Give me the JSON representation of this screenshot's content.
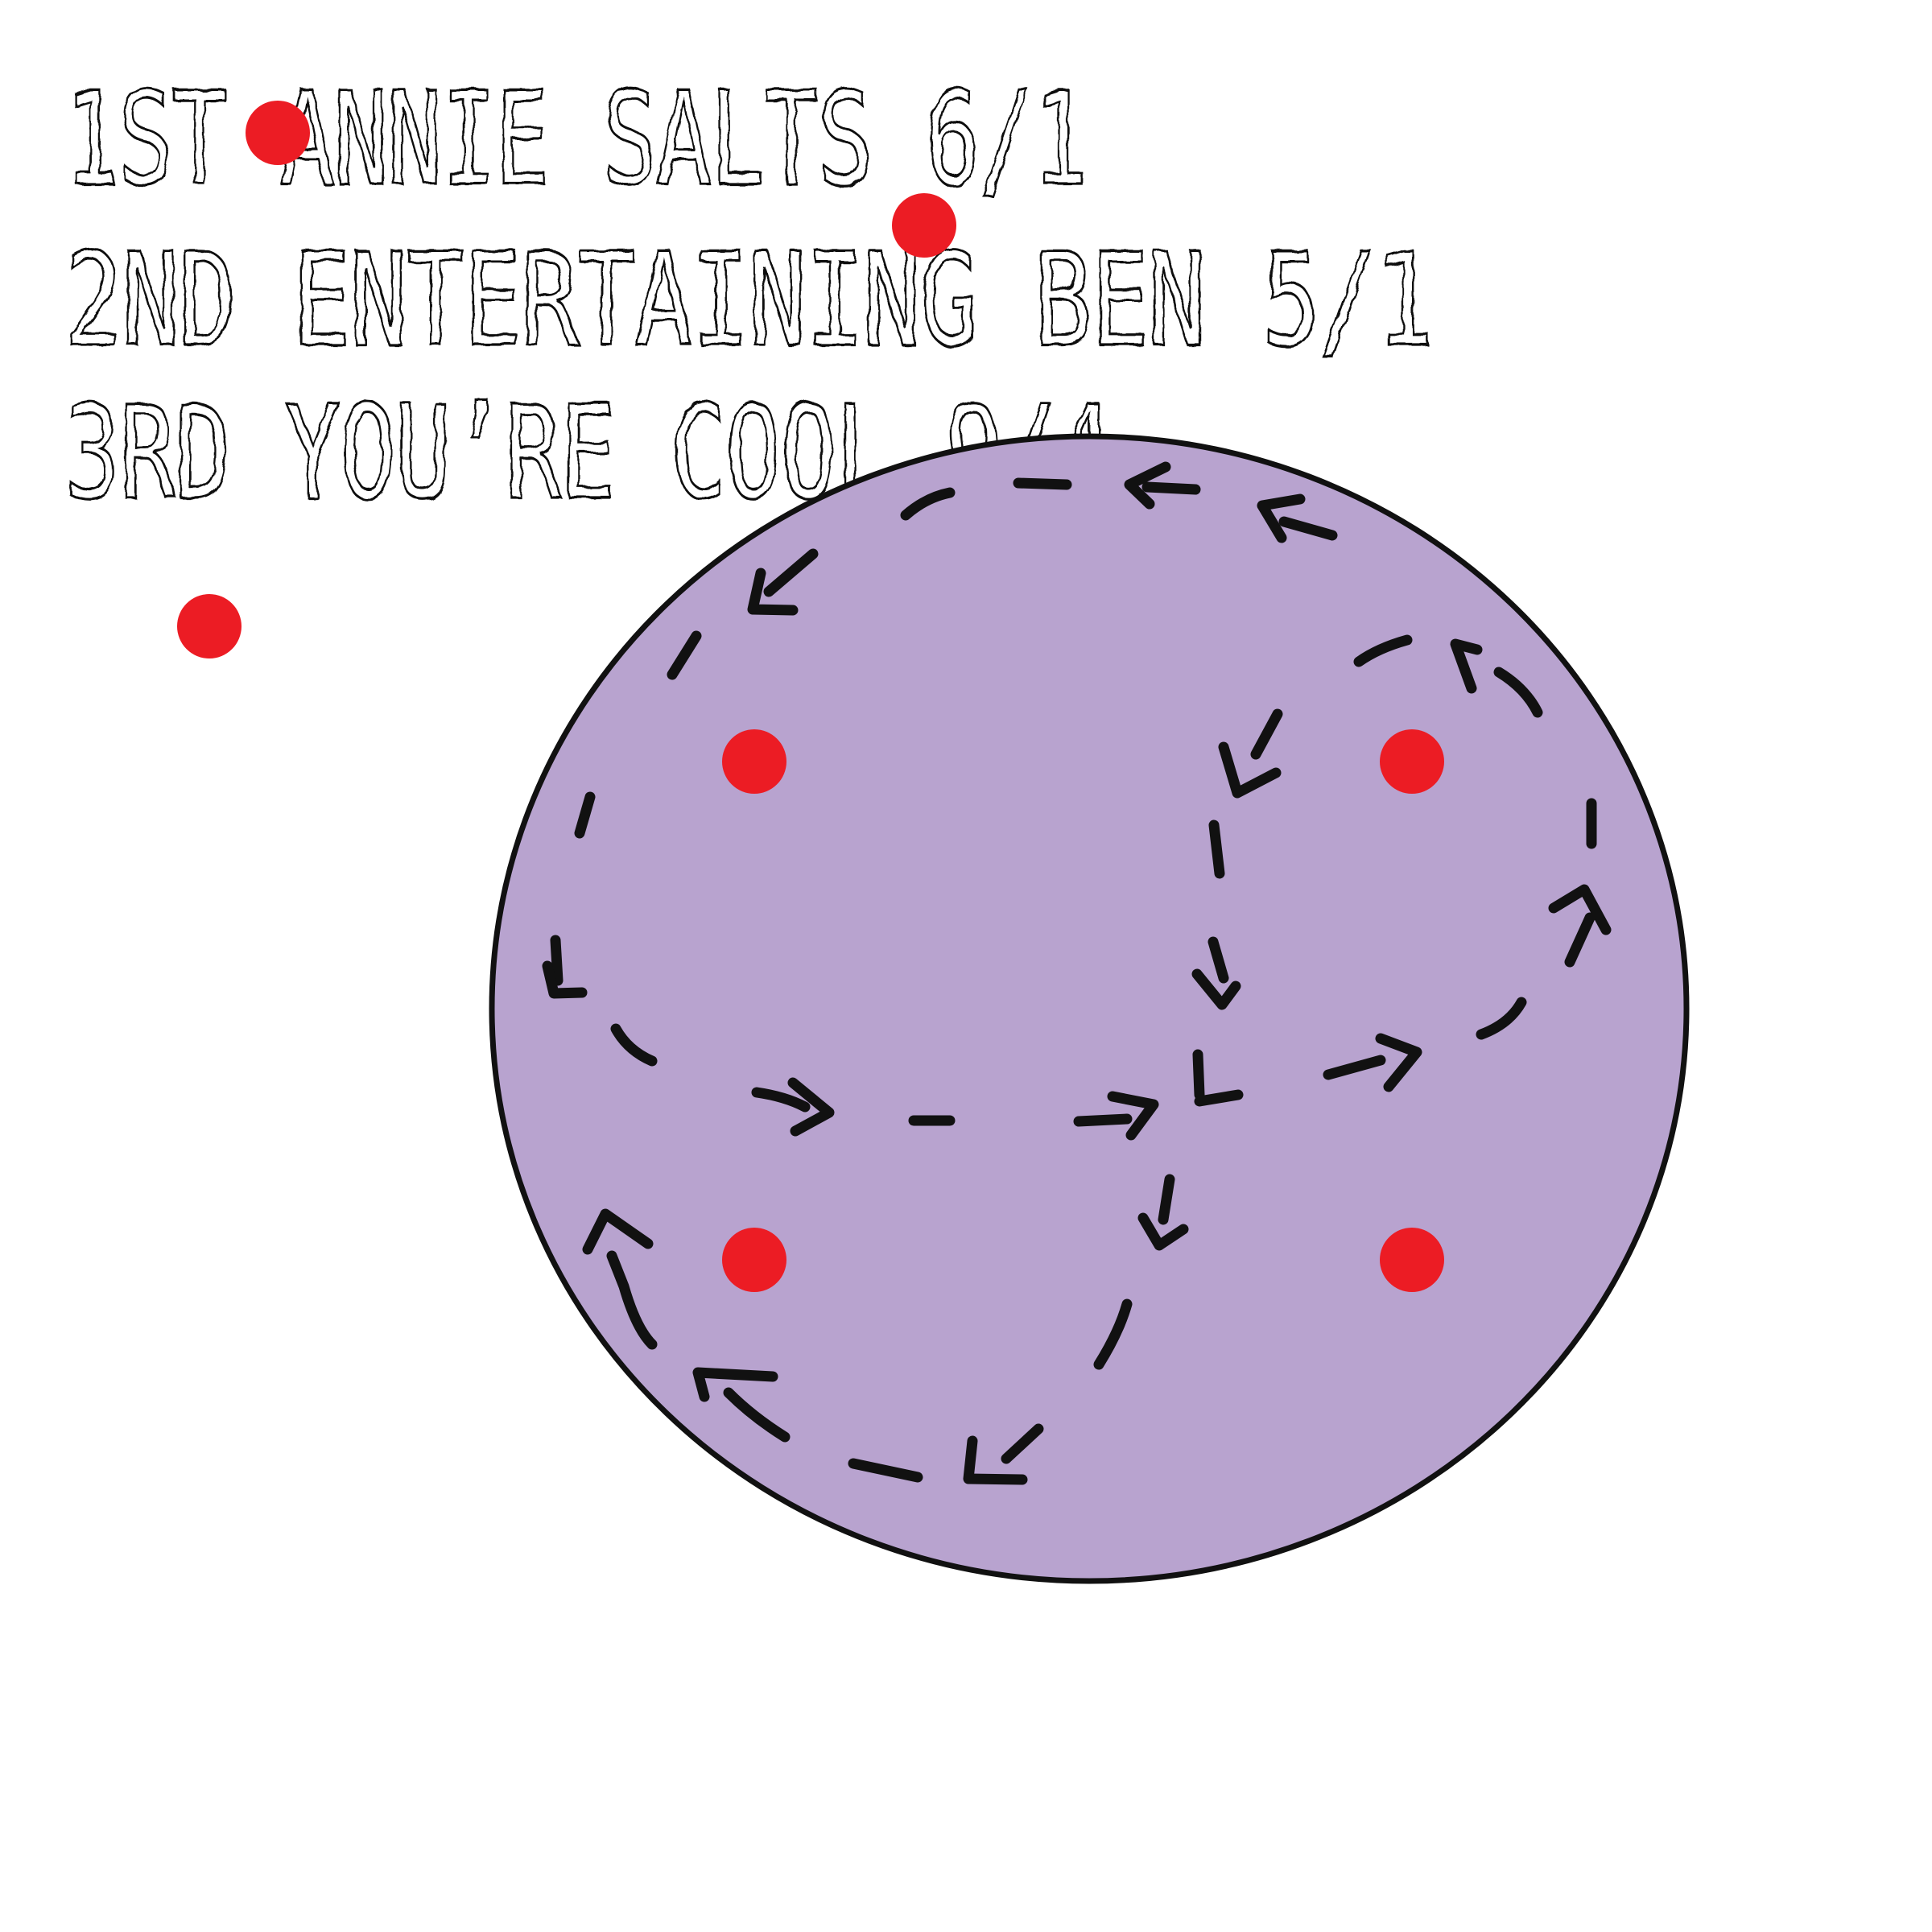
{
  "results": {
    "lines": [
      "1ST ANNIE SALTS 6/1",
      "2ND ENTERTAINING BEN 5/1",
      "3RD YOU’RE COOL 9/4"
    ]
  },
  "colors": {
    "background": "#ffffff",
    "disc_fill": "#b8a3cf",
    "outline": "#111111",
    "dot": "#ec1c24",
    "path_dash": "#111111"
  },
  "icons": {
    "markers": "red-dot",
    "path_arrows": "arrowhead"
  }
}
